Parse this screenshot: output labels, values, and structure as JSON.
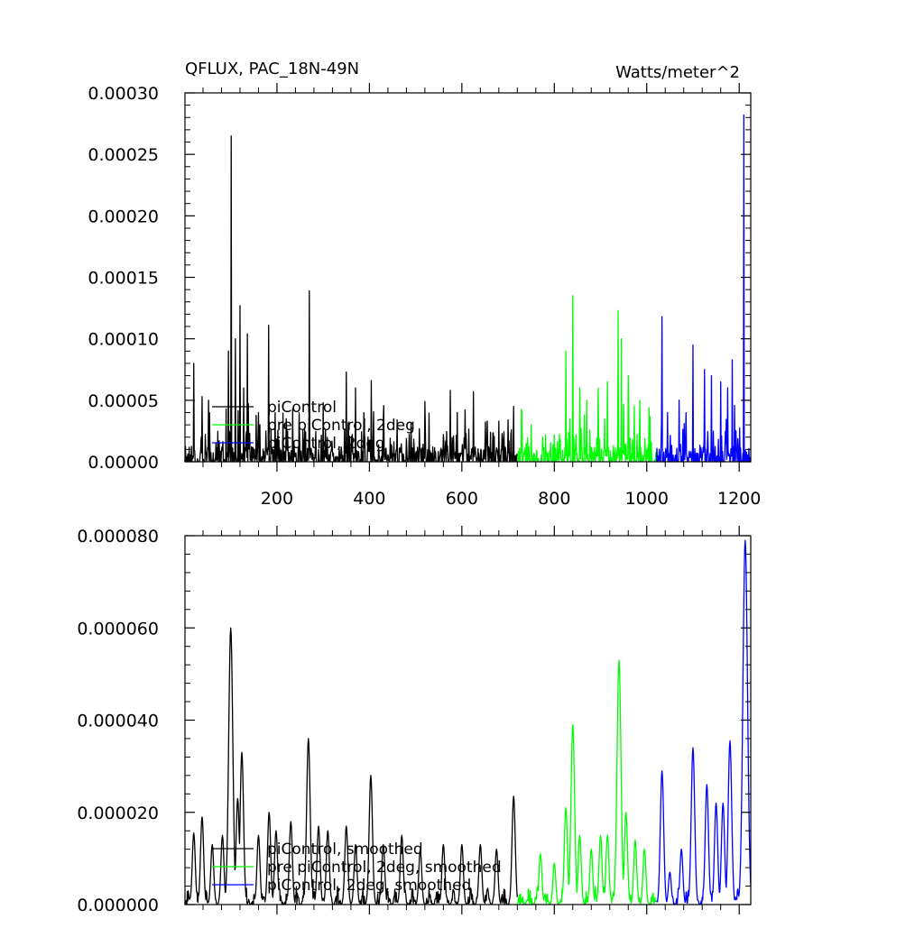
{
  "chart_data": [
    {
      "type": "line",
      "title": "QFLUX, PAC_18N-49N",
      "units": "Watts/meter^2",
      "xlim": [
        1,
        1225
      ],
      "ylim": [
        0,
        0.0003
      ],
      "y_tick_labels": [
        "0.00000",
        "0.00005",
        "0.00010",
        "0.00015",
        "0.00020",
        "0.00025",
        "0.00030"
      ],
      "y_ticks": [
        0,
        5e-05,
        0.0001,
        0.00015,
        0.0002,
        0.00025,
        0.0003
      ],
      "x_tick_labels": [
        "200",
        "400",
        "600",
        "800",
        "1000",
        "1200"
      ],
      "x_ticks": [
        200,
        400,
        600,
        800,
        1000,
        1200
      ],
      "legend": "bottom-left",
      "series": [
        {
          "name": "piControl",
          "color": "#000000",
          "x_start": 1,
          "x_end": 720,
          "peaks": [
            [
              20,
              8e-05
            ],
            [
              38,
              5.3e-05
            ],
            [
              52,
              5e-05
            ],
            [
              95,
              9e-05
            ],
            [
              101,
              0.000265
            ],
            [
              110,
              0.0001
            ],
            [
              120,
              0.000127
            ],
            [
              128,
              6e-05
            ],
            [
              136,
              0.000104
            ],
            [
              160,
              4e-05
            ],
            [
              182,
              0.000111
            ],
            [
              196,
              4e-05
            ],
            [
              220,
              3.5e-05
            ],
            [
              248,
              4e-05
            ],
            [
              270,
              0.000139
            ],
            [
              300,
              4.8e-05
            ],
            [
              350,
              7.3e-05
            ],
            [
              370,
              6e-05
            ],
            [
              388,
              4e-05
            ],
            [
              404,
              6.6e-05
            ],
            [
              430,
              3.4e-05
            ],
            [
              460,
              3.4e-05
            ],
            [
              490,
              3.2e-05
            ],
            [
              520,
              4.9e-05
            ],
            [
              575,
              5.8e-05
            ],
            [
              625,
              5.7e-05
            ],
            [
              655,
              3.3e-05
            ],
            [
              680,
              3.3e-05
            ],
            [
              700,
              3.4e-05
            ],
            [
              712,
              4.5e-05
            ]
          ]
        },
        {
          "name": "pre piControl, 2deg",
          "color": "#00ff00",
          "x_start": 721,
          "x_end": 1020,
          "peaks": [
            [
              730,
              4e-05
            ],
            [
              750,
              3e-05
            ],
            [
              775,
              2e-05
            ],
            [
              800,
              2.2e-05
            ],
            [
              825,
              9e-05
            ],
            [
              840,
              0.000135
            ],
            [
              855,
              6e-05
            ],
            [
              870,
              5e-05
            ],
            [
              895,
              6e-05
            ],
            [
              915,
              6.5e-05
            ],
            [
              938,
              0.000123
            ],
            [
              945,
              0.0001
            ],
            [
              960,
              7e-05
            ],
            [
              985,
              5e-05
            ],
            [
              1005,
              4.4e-05
            ]
          ]
        },
        {
          "name": "piControl, 2deg",
          "color": "#0000ff",
          "x_start": 1021,
          "x_end": 1225,
          "peaks": [
            [
              1033,
              0.000118
            ],
            [
              1045,
              4e-05
            ],
            [
              1070,
              5e-05
            ],
            [
              1085,
              4e-05
            ],
            [
              1100,
              9.5e-05
            ],
            [
              1125,
              7.5e-05
            ],
            [
              1140,
              7e-05
            ],
            [
              1160,
              6.5e-05
            ],
            [
              1175,
              6e-05
            ],
            [
              1185,
              8.3e-05
            ],
            [
              1210,
              0.000282
            ]
          ]
        }
      ]
    },
    {
      "type": "line",
      "xlim": [
        1,
        1225
      ],
      "ylim": [
        0,
        8e-05
      ],
      "y_tick_labels": [
        "0.000000",
        "0.000020",
        "0.000040",
        "0.000060",
        "0.000080"
      ],
      "y_ticks": [
        0,
        2e-05,
        4e-05,
        6e-05,
        8e-05
      ],
      "x_ticks": [
        200,
        400,
        600,
        800,
        1000,
        1200
      ],
      "legend": "bottom-left",
      "series": [
        {
          "name": "piControl, smoothed",
          "color": "#000000",
          "x_start": 1,
          "x_end": 720,
          "peaks": [
            [
              20,
              1.55e-05
            ],
            [
              38,
              1.9e-05
            ],
            [
              60,
              1.3e-05
            ],
            [
              82,
              1.5e-05
            ],
            [
              100,
              6e-05
            ],
            [
              115,
              2.3e-05
            ],
            [
              124,
              3.3e-05
            ],
            [
              160,
              1.5e-05
            ],
            [
              183,
              2e-05
            ],
            [
              198,
              1.6e-05
            ],
            [
              230,
              1.8e-05
            ],
            [
              268,
              3.6e-05
            ],
            [
              290,
              1.7e-05
            ],
            [
              310,
              1.6e-05
            ],
            [
              350,
              1.7e-05
            ],
            [
              370,
              1.3e-05
            ],
            [
              403,
              2.8e-05
            ],
            [
              430,
              1.3e-05
            ],
            [
              470,
              1.5e-05
            ],
            [
              510,
              1.2e-05
            ],
            [
              560,
              1.3e-05
            ],
            [
              600,
              1.3e-05
            ],
            [
              640,
              1.3e-05
            ],
            [
              675,
              1.2e-05
            ],
            [
              712,
              2.35e-05
            ]
          ]
        },
        {
          "name": "pre piControl, 2deg, smoothed",
          "color": "#00ff00",
          "x_start": 721,
          "x_end": 1020,
          "peaks": [
            [
              770,
              1.1e-05
            ],
            [
              800,
              9e-06
            ],
            [
              825,
              2.1e-05
            ],
            [
              840,
              3.9e-05
            ],
            [
              855,
              1.5e-05
            ],
            [
              880,
              1.2e-05
            ],
            [
              900,
              1.5e-05
            ],
            [
              915,
              1.5e-05
            ],
            [
              940,
              5.3e-05
            ],
            [
              955,
              2e-05
            ],
            [
              975,
              1.4e-05
            ],
            [
              995,
              1.2e-05
            ]
          ]
        },
        {
          "name": "piControl, 2deg, smoothed",
          "color": "#0000ff",
          "x_start": 1021,
          "x_end": 1225,
          "peaks": [
            [
              1033,
              2.9e-05
            ],
            [
              1050,
              7e-06
            ],
            [
              1075,
              1.2e-05
            ],
            [
              1100,
              3.4e-05
            ],
            [
              1130,
              2.6e-05
            ],
            [
              1150,
              2.2e-05
            ],
            [
              1165,
              2.2e-05
            ],
            [
              1180,
              3.55e-05
            ],
            [
              1213,
              7.9e-05
            ]
          ]
        }
      ]
    }
  ]
}
